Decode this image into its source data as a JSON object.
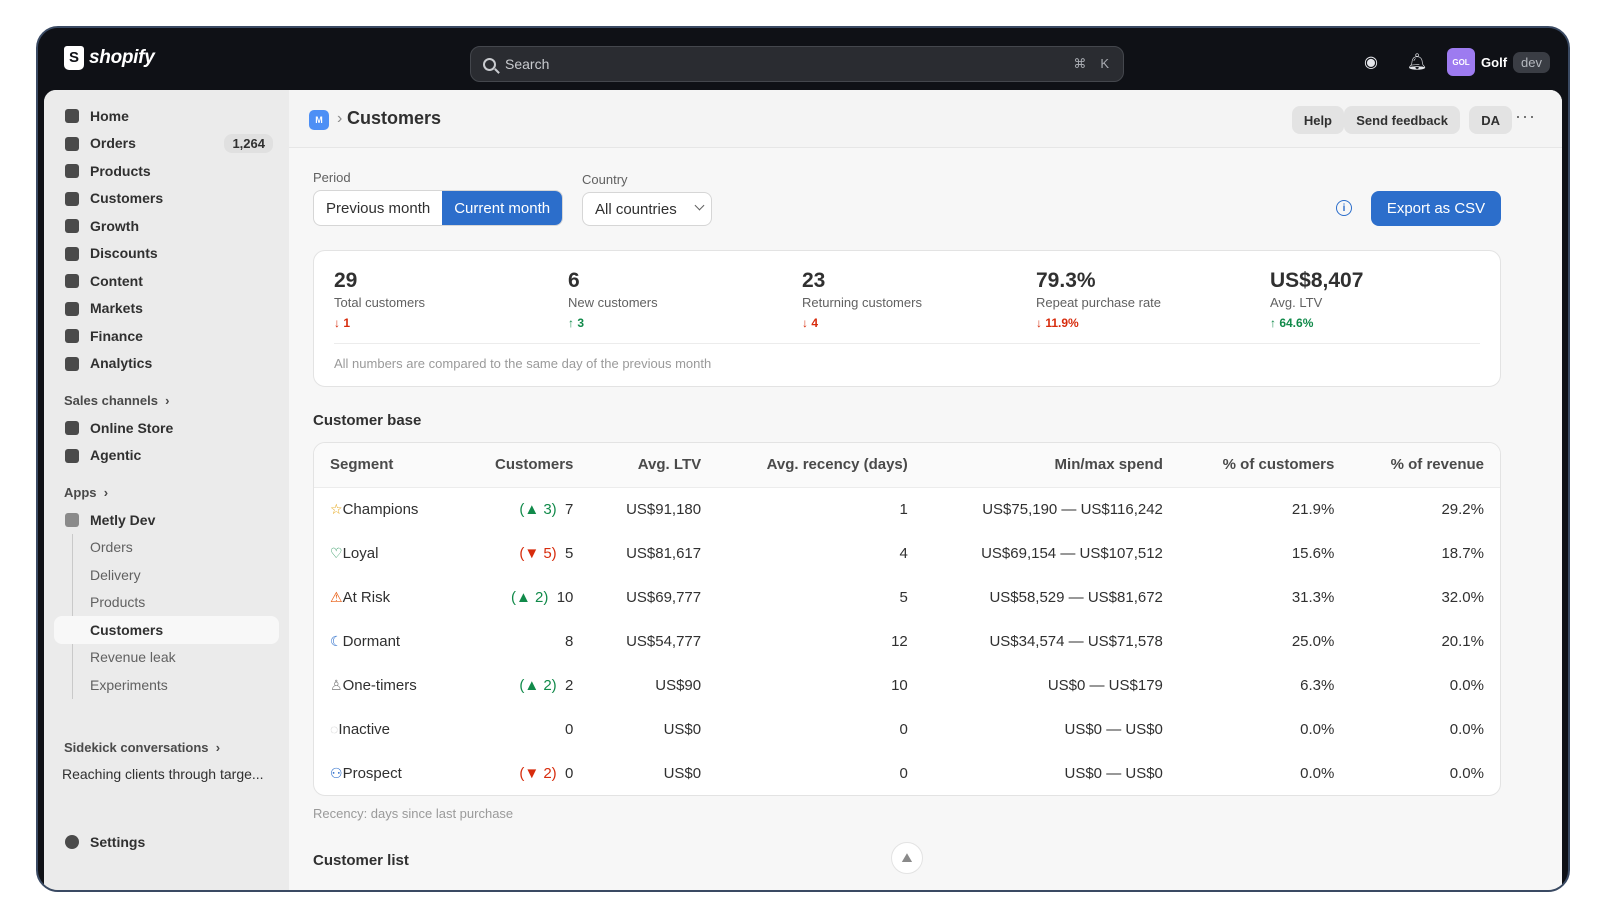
{
  "topbar": {
    "brand": "shopify",
    "search_placeholder": "Search",
    "shortcut_mod": "⌘",
    "shortcut_key": "K",
    "avatar": "GOL",
    "store_name": "Golf",
    "env_badge": "dev"
  },
  "sidebar": {
    "items": [
      {
        "label": "Home",
        "icon": "home-icon"
      },
      {
        "label": "Orders",
        "icon": "orders-icon",
        "badge": "1,264"
      },
      {
        "label": "Products",
        "icon": "tag-icon"
      },
      {
        "label": "Customers",
        "icon": "person-icon"
      },
      {
        "label": "Growth",
        "icon": "gauge-icon"
      },
      {
        "label": "Discounts",
        "icon": "discount-icon"
      },
      {
        "label": "Content",
        "icon": "content-icon"
      },
      {
        "label": "Markets",
        "icon": "globe-icon"
      },
      {
        "label": "Finance",
        "icon": "bank-icon"
      },
      {
        "label": "Analytics",
        "icon": "bar-chart-icon"
      }
    ],
    "sales_channels_label": "Sales channels",
    "channels": [
      {
        "label": "Online Store"
      },
      {
        "label": "Agentic"
      }
    ],
    "apps_label": "Apps",
    "app_name": "Metly Dev",
    "app_subitems": [
      "Orders",
      "Delivery",
      "Products",
      "Customers",
      "Revenue leak",
      "Experiments"
    ],
    "sidekick_label": "Sidekick conversations",
    "sidekick_item": "Reaching clients through targe...",
    "settings": "Settings"
  },
  "header": {
    "app_badge": "M",
    "title": "Customers",
    "help": "Help",
    "feedback": "Send feedback",
    "initials": "DA",
    "more": "···"
  },
  "filters": {
    "period_label": "Period",
    "prev": "Previous month",
    "curr": "Current month",
    "country_label": "Country",
    "country_value": "All countries",
    "info_icon": "i",
    "export": "Export as CSV"
  },
  "stats": [
    {
      "value": "29",
      "label": "Total customers",
      "delta": "↓ 1",
      "dir": "down"
    },
    {
      "value": "6",
      "label": "New customers",
      "delta": "↑ 3",
      "dir": "up"
    },
    {
      "value": "23",
      "label": "Returning customers",
      "delta": "↓ 4",
      "dir": "down"
    },
    {
      "value": "79.3%",
      "label": "Repeat purchase rate",
      "delta": "↓ 11.9%",
      "dir": "down"
    },
    {
      "value": "US$8,407",
      "label": "Avg. LTV",
      "delta": "↑ 64.6%",
      "dir": "up"
    }
  ],
  "stats_note": "All numbers are compared to the same day of the previous month",
  "customer_base": {
    "title": "Customer base",
    "headers": [
      "Segment",
      "Customers",
      "Avg. LTV",
      "Avg. recency (days)",
      "Min/max spend",
      "% of customers",
      "% of revenue"
    ],
    "rows": [
      {
        "icon": "star-icon",
        "glyph": "☆",
        "color": "#e3a008",
        "segment": "Champions",
        "change": "(▲ 3)",
        "dir": "up",
        "customers": "7",
        "ltv": "US$91,180",
        "recency": "1",
        "spend": "US$75,190 — US$116,242",
        "pct_c": "21.9%",
        "pct_r": "29.2%"
      },
      {
        "icon": "heart-icon",
        "glyph": "♡",
        "color": "#118a4a",
        "segment": "Loyal",
        "change": "(▼ 5)",
        "dir": "down",
        "customers": "5",
        "ltv": "US$81,617",
        "recency": "4",
        "spend": "US$69,154 — US$107,512",
        "pct_c": "15.6%",
        "pct_r": "18.7%"
      },
      {
        "icon": "warning-icon",
        "glyph": "⚠",
        "color": "#e8590c",
        "segment": "At Risk",
        "change": "(▲ 2)",
        "dir": "up",
        "customers": "10",
        "ltv": "US$69,777",
        "recency": "5",
        "spend": "US$58,529 — US$81,672",
        "pct_c": "31.3%",
        "pct_r": "32.0%"
      },
      {
        "icon": "moon-icon",
        "glyph": "☾",
        "color": "#2c6ecb",
        "segment": "Dormant",
        "change": "",
        "dir": "",
        "customers": "8",
        "ltv": "US$54,777",
        "recency": "12",
        "spend": "US$34,574 — US$71,578",
        "pct_c": "25.0%",
        "pct_r": "20.1%"
      },
      {
        "icon": "person-icon",
        "glyph": "♙",
        "color": "#8a8a8a",
        "segment": "One-timers",
        "change": "(▲ 2)",
        "dir": "up",
        "customers": "2",
        "ltv": "US$90",
        "recency": "10",
        "spend": "US$0 — US$179",
        "pct_c": "6.3%",
        "pct_r": "0.0%"
      },
      {
        "icon": "inactive-icon",
        "glyph": "◌",
        "color": "#c0c0c0",
        "segment": "Inactive",
        "change": "",
        "dir": "",
        "customers": "0",
        "ltv": "US$0",
        "recency": "0",
        "spend": "US$0 — US$0",
        "pct_c": "0.0%",
        "pct_r": "0.0%"
      },
      {
        "icon": "add-person-icon",
        "glyph": "⚇",
        "color": "#2c6ecb",
        "segment": "Prospect",
        "change": "(▼ 2)",
        "dir": "down",
        "customers": "0",
        "ltv": "US$0",
        "recency": "0",
        "spend": "US$0 — US$0",
        "pct_c": "0.0%",
        "pct_r": "0.0%"
      }
    ],
    "footnote": "Recency: days since last purchase"
  },
  "customer_list_title": "Customer list",
  "colors": {
    "accent": "#2c6ecb",
    "up": "#118a4a",
    "down": "#d72c0d"
  }
}
